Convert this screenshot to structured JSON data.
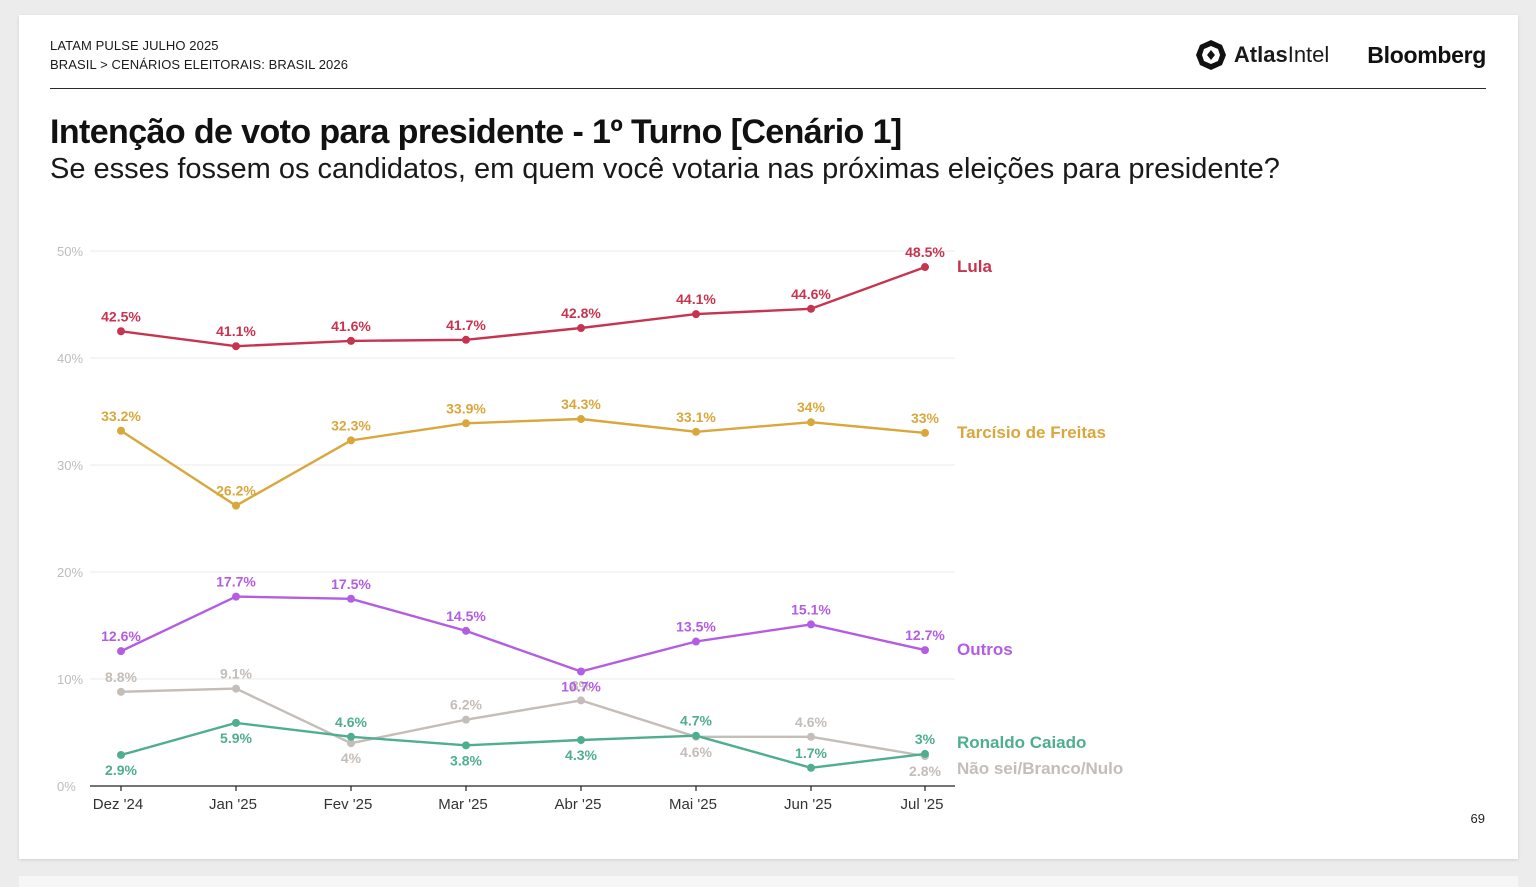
{
  "header": {
    "line1": "LATAM PULSE JULHO 2025",
    "line2": "BRASIL > CENÁRIOS ELEITORAIS: BRASIL 2026",
    "brand_atlas_bold": "Atlas",
    "brand_atlas_light": "Intel",
    "brand_bloomberg": "Bloomberg",
    "atlas_icon": "atlasintel-logo-icon"
  },
  "title": "Intenção de voto para presidente - 1º Turno [Cenário 1]",
  "subtitle": "Se esses fossem os candidatos, em quem você votaria nas próximas eleições para presidente?",
  "page_number": "69",
  "chart_data": {
    "type": "line",
    "title": "Intenção de voto para presidente - 1º Turno [Cenário 1]",
    "categories": [
      "Dez '24",
      "Jan '25",
      "Fev '25",
      "Mar '25",
      "Abr '25",
      "Mai '25",
      "Jun '25",
      "Jul '25"
    ],
    "ylim": [
      0,
      50
    ],
    "yticks": [
      0,
      10,
      20,
      30,
      40,
      50
    ],
    "ytick_labels": [
      "0%",
      "10%",
      "20%",
      "30%",
      "40%",
      "50%"
    ],
    "grid": true,
    "legend": "labels at right end of each line",
    "series": [
      {
        "name": "Lula",
        "color": "#c8344f",
        "values": [
          42.5,
          41.1,
          41.6,
          41.7,
          42.8,
          44.1,
          44.6,
          48.5
        ],
        "labels": [
          "42.5%",
          "41.1%",
          "41.6%",
          "41.7%",
          "42.8%",
          "44.1%",
          "44.6%",
          "48.5%"
        ]
      },
      {
        "name": "Tarcísio de Freitas",
        "color": "#d9a73c",
        "values": [
          33.2,
          26.2,
          32.3,
          33.9,
          34.3,
          33.1,
          34,
          33
        ],
        "labels": [
          "33.2%",
          "26.2%",
          "32.3%",
          "33.9%",
          "34.3%",
          "33.1%",
          "34%",
          "33%"
        ]
      },
      {
        "name": "Outros",
        "color": "#b35de3",
        "values": [
          12.6,
          17.7,
          17.5,
          14.5,
          10.7,
          13.5,
          15.1,
          12.7
        ],
        "labels": [
          "12.6%",
          "17.7%",
          "17.5%",
          "14.5%",
          "10.7%",
          "13.5%",
          "15.1%",
          "12.7%"
        ]
      },
      {
        "name": "Não sei/Branco/Nulo",
        "color": "#c4bdb8",
        "values": [
          8.8,
          9.1,
          4,
          6.2,
          8,
          4.6,
          4.6,
          2.8
        ],
        "labels": [
          "8.8%",
          "9.1%",
          "4%",
          "6.2%",
          "8%",
          "4.6%",
          "4.6%",
          "2.8%"
        ]
      },
      {
        "name": "Ronaldo Caiado",
        "color": "#4fae8f",
        "values": [
          2.9,
          5.9,
          4.6,
          3.8,
          4.3,
          4.7,
          1.7,
          3
        ],
        "labels": [
          "2.9%",
          "5.9%",
          "4.6%",
          "3.8%",
          "4.3%",
          "4.7%",
          "1.7%",
          "3%"
        ]
      }
    ]
  }
}
